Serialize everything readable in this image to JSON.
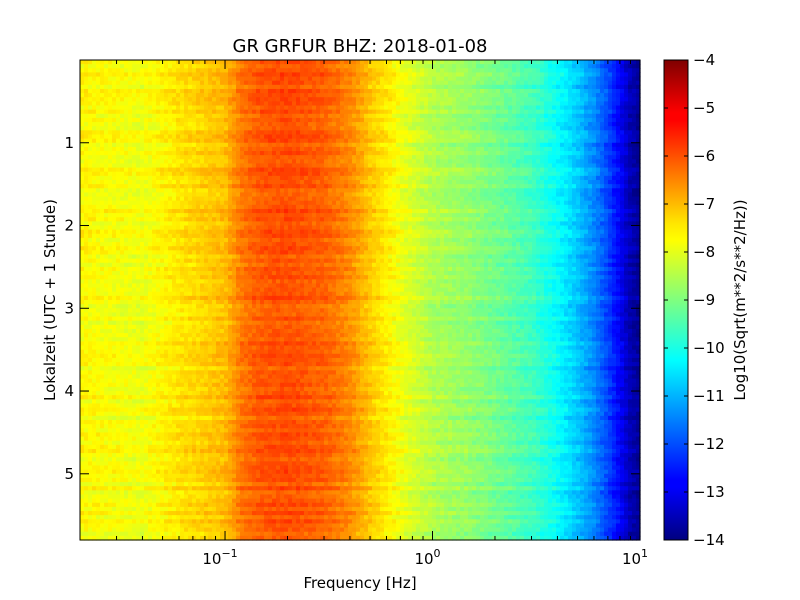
{
  "chart_data": {
    "type": "heatmap",
    "title": "GR GRFUR BHZ: 2018-01-08",
    "xlabel": "Frequency [Hz]",
    "ylabel": "Lokalzeit (UTC + 1 Stunde)",
    "x_scale": "log",
    "xlim": [
      0.02,
      10
    ],
    "ylim": [
      5.8,
      0
    ],
    "x_ticks": [
      {
        "value": 0.1,
        "base": "10",
        "exp": "−1"
      },
      {
        "value": 1,
        "base": "10",
        "exp": "0"
      },
      {
        "value": 10,
        "base": "10",
        "exp": "1"
      }
    ],
    "y_ticks": [
      1,
      2,
      3,
      4,
      5
    ],
    "colorbar": {
      "label": "Log10(Sqrt(m**2/s**2/Hz))",
      "colormap": "jet",
      "range": [
        -14,
        -4
      ],
      "ticks": [
        "−4",
        "−5",
        "−6",
        "−7",
        "−8",
        "−9",
        "−10",
        "−11",
        "−12",
        "−13",
        "−14"
      ]
    },
    "spectrum_profile": {
      "frequency_hz": [
        0.02,
        0.04,
        0.06,
        0.1,
        0.12,
        0.15,
        0.2,
        0.3,
        0.4,
        0.5,
        0.7,
        1.0,
        1.5,
        2.0,
        3.0,
        4.0,
        5.0,
        6.0,
        7.0,
        8.0,
        9.0,
        10.0
      ],
      "log10_amplitude": [
        -7.7,
        -7.9,
        -7.5,
        -7.1,
        -6.4,
        -6.1,
        -6.0,
        -6.2,
        -6.6,
        -7.2,
        -7.9,
        -8.5,
        -8.8,
        -9.1,
        -9.6,
        -10.2,
        -10.8,
        -11.4,
        -12.1,
        -12.8,
        -13.5,
        -13.8
      ]
    }
  }
}
